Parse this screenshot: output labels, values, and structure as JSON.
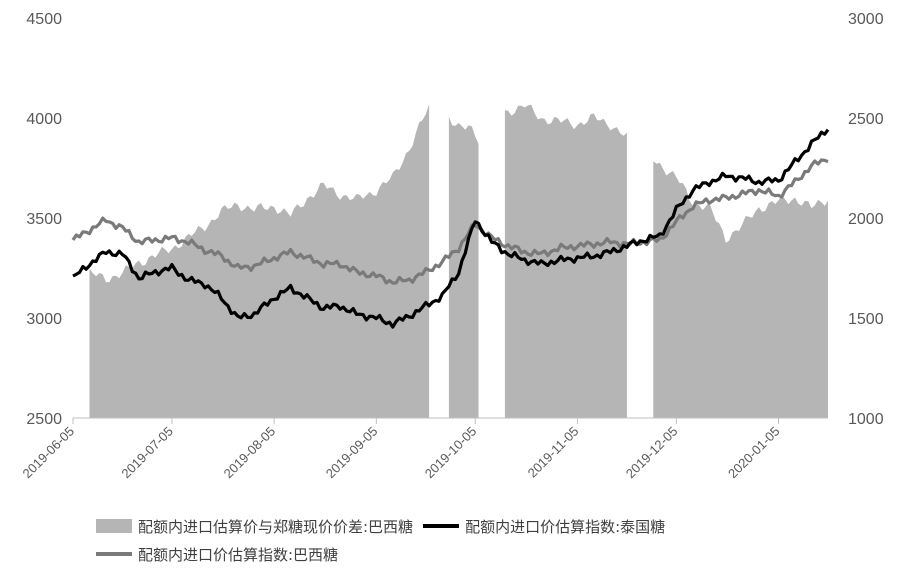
{
  "chart_data": {
    "type": "area+line",
    "left_axis": {
      "ylim": [
        2500,
        4500
      ],
      "ticks": [
        "2500",
        "3000",
        "3500",
        "4000",
        "4500"
      ]
    },
    "right_axis": {
      "ylim": [
        1000,
        3000
      ],
      "ticks": [
        "1000",
        "1500",
        "2000",
        "2500",
        "3000"
      ]
    },
    "x_ticks": [
      "2019-06-05",
      "2019-07-05",
      "2019-08-05",
      "2019-09-05",
      "2019-10-05",
      "2019-11-05",
      "2019-12-05",
      "2020-01-05"
    ],
    "x_start": "2019-06-05",
    "x_end": "2020-01-20",
    "series": [
      {
        "name": "配额内进口估算价与郑糖现价价差:巴西糖",
        "kind": "area",
        "axis": "right",
        "color": "#b5b5b5",
        "points": [
          [
            "2019-06-05",
            1850
          ],
          [
            "2019-06-06",
            1760
          ],
          [
            "2019-06-10",
            1720
          ],
          [
            "2019-06-15",
            1700
          ],
          [
            "2019-06-20",
            1720
          ],
          [
            "2019-06-25",
            1780
          ],
          [
            "2019-06-30",
            1810
          ],
          [
            "2019-07-05",
            1850
          ],
          [
            "2019-07-10",
            1900
          ],
          [
            "2019-07-15",
            1960
          ],
          [
            "2019-07-20",
            2030
          ],
          [
            "2019-07-25",
            2070
          ],
          [
            "2019-07-30",
            2040
          ],
          [
            "2019-08-05",
            2060
          ],
          [
            "2019-08-10",
            2010
          ],
          [
            "2019-08-15",
            2100
          ],
          [
            "2019-08-20",
            2160
          ],
          [
            "2019-08-25",
            2120
          ],
          [
            "2019-08-30",
            2090
          ],
          [
            "2019-09-05",
            2140
          ],
          [
            "2019-09-10",
            2200
          ],
          [
            "2019-09-15",
            2350
          ],
          [
            "2019-09-20",
            2520
          ],
          [
            "2019-09-21",
            2550
          ],
          [
            "2019-09-25",
            2520
          ],
          [
            "2019-09-30",
            2470
          ],
          [
            "2019-10-03",
            2450
          ],
          [
            "2019-10-06",
            2380
          ],
          [
            "2019-10-14",
            2530
          ],
          [
            "2019-10-20",
            2560
          ],
          [
            "2019-10-25",
            2500
          ],
          [
            "2019-10-31",
            2480
          ],
          [
            "2019-11-05",
            2470
          ],
          [
            "2019-11-10",
            2500
          ],
          [
            "2019-11-15",
            2470
          ],
          [
            "2019-11-20",
            2400
          ],
          [
            "2019-11-25",
            2330
          ],
          [
            "2019-11-30",
            2270
          ],
          [
            "2019-12-05",
            2200
          ],
          [
            "2019-12-10",
            2080
          ],
          [
            "2019-12-15",
            2050
          ],
          [
            "2019-12-20",
            1900
          ],
          [
            "2019-12-25",
            1960
          ],
          [
            "2019-12-30",
            2050
          ],
          [
            "2020-01-05",
            2080
          ],
          [
            "2020-01-10",
            2100
          ],
          [
            "2020-01-15",
            2050
          ],
          [
            "2020-01-20",
            2100
          ]
        ],
        "gaps": [
          [
            "2019-06-06",
            "2019-06-09"
          ],
          [
            "2019-09-22",
            "2019-09-26"
          ],
          [
            "2019-10-07",
            "2019-10-13"
          ],
          [
            "2019-11-21",
            "2019-11-23"
          ],
          [
            "2019-11-25",
            "2019-11-27"
          ]
        ]
      },
      {
        "name": "配额内进口价估算指数:泰国糖",
        "kind": "line",
        "axis": "left",
        "color": "#000000",
        "points": [
          [
            "2019-06-05",
            3200
          ],
          [
            "2019-06-10",
            3270
          ],
          [
            "2019-06-15",
            3330
          ],
          [
            "2019-06-20",
            3320
          ],
          [
            "2019-06-25",
            3200
          ],
          [
            "2019-06-30",
            3230
          ],
          [
            "2019-07-05",
            3250
          ],
          [
            "2019-07-10",
            3190
          ],
          [
            "2019-07-15",
            3170
          ],
          [
            "2019-07-20",
            3100
          ],
          [
            "2019-07-25",
            3000
          ],
          [
            "2019-07-30",
            3020
          ],
          [
            "2019-08-05",
            3100
          ],
          [
            "2019-08-10",
            3150
          ],
          [
            "2019-08-15",
            3100
          ],
          [
            "2019-08-20",
            3050
          ],
          [
            "2019-08-25",
            3060
          ],
          [
            "2019-08-30",
            3020
          ],
          [
            "2019-09-05",
            3000
          ],
          [
            "2019-09-10",
            2970
          ],
          [
            "2019-09-15",
            3010
          ],
          [
            "2019-09-20",
            3060
          ],
          [
            "2019-09-25",
            3110
          ],
          [
            "2019-09-30",
            3230
          ],
          [
            "2019-10-05",
            3490
          ],
          [
            "2019-10-10",
            3380
          ],
          [
            "2019-10-15",
            3320
          ],
          [
            "2019-10-20",
            3290
          ],
          [
            "2019-10-25",
            3270
          ],
          [
            "2019-10-31",
            3290
          ],
          [
            "2019-11-05",
            3300
          ],
          [
            "2019-11-10",
            3310
          ],
          [
            "2019-11-15",
            3330
          ],
          [
            "2019-11-20",
            3360
          ],
          [
            "2019-11-25",
            3390
          ],
          [
            "2019-11-30",
            3410
          ],
          [
            "2019-12-05",
            3540
          ],
          [
            "2019-12-10",
            3640
          ],
          [
            "2019-12-15",
            3680
          ],
          [
            "2019-12-20",
            3710
          ],
          [
            "2019-12-25",
            3700
          ],
          [
            "2019-12-30",
            3680
          ],
          [
            "2020-01-05",
            3690
          ],
          [
            "2020-01-10",
            3780
          ],
          [
            "2020-01-15",
            3870
          ],
          [
            "2020-01-20",
            3950
          ]
        ]
      },
      {
        "name": "配额内进口价估算指数:巴西糖",
        "kind": "line",
        "axis": "left",
        "color": "#7a7a7a",
        "points": [
          [
            "2019-06-05",
            3390
          ],
          [
            "2019-06-10",
            3440
          ],
          [
            "2019-06-15",
            3490
          ],
          [
            "2019-06-20",
            3450
          ],
          [
            "2019-06-25",
            3380
          ],
          [
            "2019-06-30",
            3390
          ],
          [
            "2019-07-05",
            3400
          ],
          [
            "2019-07-10",
            3380
          ],
          [
            "2019-07-15",
            3340
          ],
          [
            "2019-07-20",
            3310
          ],
          [
            "2019-07-25",
            3250
          ],
          [
            "2019-07-30",
            3260
          ],
          [
            "2019-08-05",
            3300
          ],
          [
            "2019-08-10",
            3330
          ],
          [
            "2019-08-15",
            3300
          ],
          [
            "2019-08-20",
            3270
          ],
          [
            "2019-08-25",
            3270
          ],
          [
            "2019-08-30",
            3230
          ],
          [
            "2019-09-05",
            3210
          ],
          [
            "2019-09-10",
            3180
          ],
          [
            "2019-09-15",
            3190
          ],
          [
            "2019-09-20",
            3230
          ],
          [
            "2019-09-25",
            3280
          ],
          [
            "2019-09-30",
            3350
          ],
          [
            "2019-10-05",
            3470
          ],
          [
            "2019-10-10",
            3400
          ],
          [
            "2019-10-15",
            3360
          ],
          [
            "2019-10-20",
            3330
          ],
          [
            "2019-10-25",
            3320
          ],
          [
            "2019-10-31",
            3350
          ],
          [
            "2019-11-05",
            3360
          ],
          [
            "2019-11-10",
            3370
          ],
          [
            "2019-11-15",
            3380
          ],
          [
            "2019-11-20",
            3370
          ],
          [
            "2019-11-25",
            3380
          ],
          [
            "2019-11-30",
            3390
          ],
          [
            "2019-12-05",
            3480
          ],
          [
            "2019-12-10",
            3560
          ],
          [
            "2019-12-15",
            3590
          ],
          [
            "2019-12-20",
            3600
          ],
          [
            "2019-12-25",
            3620
          ],
          [
            "2019-12-30",
            3640
          ],
          [
            "2020-01-05",
            3610
          ],
          [
            "2020-01-10",
            3680
          ],
          [
            "2020-01-15",
            3760
          ],
          [
            "2020-01-20",
            3800
          ]
        ]
      }
    ]
  }
}
